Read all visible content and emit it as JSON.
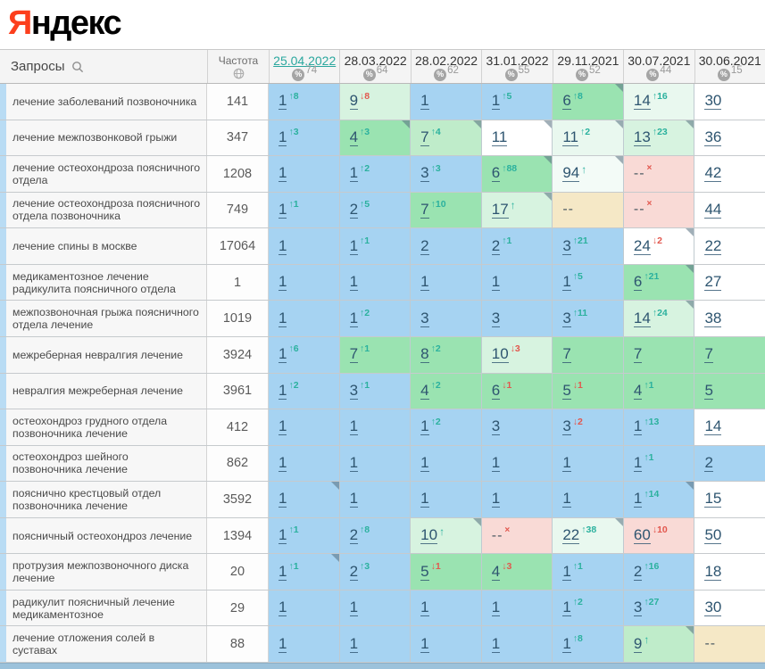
{
  "logo": {
    "red": "Я",
    "rest": "ндекс"
  },
  "colors": {
    "logo_red": "#fc3f1d",
    "date_link_teal": "#2aa79e",
    "improve_teal": "#2bb19e",
    "decline_red": "#e2574e",
    "cell_blue": "#a6d3f2",
    "cell_green": "#9ae3b1",
    "cell_pink": "#f9dad6",
    "cell_tan": "#f5e8c6",
    "position_text": "#2e5570"
  },
  "table": {
    "queries_header": "Запросы",
    "frequency_header": "Частота",
    "percent_icon": "%",
    "columns": [
      {
        "date": "25.04.2022",
        "count": "74",
        "active": true
      },
      {
        "date": "28.03.2022",
        "count": "64",
        "active": false
      },
      {
        "date": "28.02.2022",
        "count": "62",
        "active": false
      },
      {
        "date": "31.01.2022",
        "count": "55",
        "active": false
      },
      {
        "date": "29.11.2021",
        "count": "52",
        "active": false
      },
      {
        "date": "30.07.2021",
        "count": "44",
        "active": false
      },
      {
        "date": "30.06.2021",
        "count": "15",
        "active": false
      }
    ],
    "rows": [
      {
        "query": "лечение заболеваний позвоночника",
        "frequency": "141",
        "cells": [
          {
            "p": "1",
            "t": "up",
            "s": "8",
            "bg": "b"
          },
          {
            "p": "9",
            "t": "down",
            "s": "8",
            "bg": "g3"
          },
          {
            "p": "1",
            "bg": "b"
          },
          {
            "p": "1",
            "t": "up",
            "s": "5",
            "bg": "b"
          },
          {
            "p": "6",
            "t": "up",
            "s": "8",
            "bg": "g1",
            "c": true
          },
          {
            "p": "14",
            "t": "up",
            "s": "16",
            "bg": "g4"
          },
          {
            "p": "30",
            "bg": "w"
          }
        ]
      },
      {
        "query": "лечение межпозвонковой грыжи",
        "frequency": "347",
        "cells": [
          {
            "p": "1",
            "t": "up",
            "s": "3",
            "bg": "b"
          },
          {
            "p": "4",
            "t": "up",
            "s": "3",
            "bg": "g1",
            "c": true
          },
          {
            "p": "7",
            "t": "up",
            "s": "4",
            "bg": "g2",
            "c": true
          },
          {
            "p": "11",
            "bg": "w",
            "c": true
          },
          {
            "p": "11",
            "t": "up",
            "s": "2",
            "bg": "g4",
            "c": true
          },
          {
            "p": "13",
            "t": "up",
            "s": "23",
            "bg": "g3",
            "c": true
          },
          {
            "p": "36",
            "bg": "w"
          }
        ]
      },
      {
        "query": "лечение остеохондроза поясничного отдела",
        "frequency": "1208",
        "cells": [
          {
            "p": "1",
            "bg": "b"
          },
          {
            "p": "1",
            "t": "up",
            "s": "2",
            "bg": "b"
          },
          {
            "p": "3",
            "t": "up",
            "s": "3",
            "bg": "b"
          },
          {
            "p": "6",
            "t": "up",
            "s": "88",
            "bg": "g1",
            "c": true
          },
          {
            "p": "94",
            "t": "arrow",
            "bg": "g5",
            "c": true
          },
          {
            "p": "--",
            "t": "x",
            "bg": "p"
          },
          {
            "p": "42",
            "bg": "w"
          }
        ]
      },
      {
        "query": "лечение остеохондроза поясничного отдела позвоночника",
        "frequency": "749",
        "cells": [
          {
            "p": "1",
            "t": "up",
            "s": "1",
            "bg": "b"
          },
          {
            "p": "2",
            "t": "up",
            "s": "5",
            "bg": "b"
          },
          {
            "p": "7",
            "t": "up",
            "s": "10",
            "bg": "g1"
          },
          {
            "p": "17",
            "t": "arrow",
            "bg": "g3",
            "c": true
          },
          {
            "p": "--",
            "bg": "t"
          },
          {
            "p": "--",
            "t": "x",
            "bg": "p"
          },
          {
            "p": "44",
            "bg": "w"
          }
        ]
      },
      {
        "query": "лечение спины в москве",
        "frequency": "17064",
        "cells": [
          {
            "p": "1",
            "bg": "b"
          },
          {
            "p": "1",
            "t": "up",
            "s": "1",
            "bg": "b"
          },
          {
            "p": "2",
            "bg": "b"
          },
          {
            "p": "2",
            "t": "up",
            "s": "1",
            "bg": "b"
          },
          {
            "p": "3",
            "t": "up",
            "s": "21",
            "bg": "b"
          },
          {
            "p": "24",
            "t": "down",
            "s": "2",
            "bg": "w",
            "c": true
          },
          {
            "p": "22",
            "bg": "w"
          }
        ]
      },
      {
        "query": "медикаментозное лечение радикулита поясничного отдела",
        "frequency": "1",
        "cells": [
          {
            "p": "1",
            "bg": "b"
          },
          {
            "p": "1",
            "bg": "b"
          },
          {
            "p": "1",
            "bg": "b"
          },
          {
            "p": "1",
            "bg": "b"
          },
          {
            "p": "1",
            "t": "up",
            "s": "5",
            "bg": "b"
          },
          {
            "p": "6",
            "t": "up",
            "s": "21",
            "bg": "g1",
            "c": true
          },
          {
            "p": "27",
            "bg": "w"
          }
        ]
      },
      {
        "query": "межпозвоночная грыжа поясничного отдела лечение",
        "frequency": "1019",
        "cells": [
          {
            "p": "1",
            "bg": "b"
          },
          {
            "p": "1",
            "t": "up",
            "s": "2",
            "bg": "b"
          },
          {
            "p": "3",
            "bg": "b"
          },
          {
            "p": "3",
            "bg": "b"
          },
          {
            "p": "3",
            "t": "up",
            "s": "11",
            "bg": "b"
          },
          {
            "p": "14",
            "t": "up",
            "s": "24",
            "bg": "g3",
            "c": true
          },
          {
            "p": "38",
            "bg": "w"
          }
        ]
      },
      {
        "query": "межреберная невралгия лечение",
        "frequency": "3924",
        "cells": [
          {
            "p": "1",
            "t": "up",
            "s": "6",
            "bg": "b"
          },
          {
            "p": "7",
            "t": "up",
            "s": "1",
            "bg": "g1"
          },
          {
            "p": "8",
            "t": "up",
            "s": "2",
            "bg": "g1"
          },
          {
            "p": "10",
            "t": "down",
            "s": "3",
            "bg": "g3"
          },
          {
            "p": "7",
            "bg": "g1"
          },
          {
            "p": "7",
            "bg": "g1"
          },
          {
            "p": "7",
            "bg": "g1"
          }
        ]
      },
      {
        "query": "невралгия межреберная лечение",
        "frequency": "3961",
        "cells": [
          {
            "p": "1",
            "t": "up",
            "s": "2",
            "bg": "b"
          },
          {
            "p": "3",
            "t": "up",
            "s": "1",
            "bg": "b"
          },
          {
            "p": "4",
            "t": "up",
            "s": "2",
            "bg": "g1"
          },
          {
            "p": "6",
            "t": "down",
            "s": "1",
            "bg": "g1"
          },
          {
            "p": "5",
            "t": "down",
            "s": "1",
            "bg": "g1"
          },
          {
            "p": "4",
            "t": "up",
            "s": "1",
            "bg": "g1"
          },
          {
            "p": "5",
            "bg": "g1"
          }
        ]
      },
      {
        "query": "остеохондроз грудного отдела позвоночника лечение",
        "frequency": "412",
        "cells": [
          {
            "p": "1",
            "bg": "b"
          },
          {
            "p": "1",
            "bg": "b"
          },
          {
            "p": "1",
            "t": "up",
            "s": "2",
            "bg": "b"
          },
          {
            "p": "3",
            "bg": "b"
          },
          {
            "p": "3",
            "t": "down",
            "s": "2",
            "bg": "b"
          },
          {
            "p": "1",
            "t": "up",
            "s": "13",
            "bg": "b"
          },
          {
            "p": "14",
            "bg": "w"
          }
        ]
      },
      {
        "query": "остеохондроз шейного позвоночника лечение",
        "frequency": "862",
        "cells": [
          {
            "p": "1",
            "bg": "b"
          },
          {
            "p": "1",
            "bg": "b"
          },
          {
            "p": "1",
            "bg": "b"
          },
          {
            "p": "1",
            "bg": "b"
          },
          {
            "p": "1",
            "bg": "b"
          },
          {
            "p": "1",
            "t": "up",
            "s": "1",
            "bg": "b"
          },
          {
            "p": "2",
            "bg": "b"
          }
        ]
      },
      {
        "query": "пояснично крестцовый отдел позвоночника лечение",
        "frequency": "3592",
        "cells": [
          {
            "p": "1",
            "bg": "b",
            "c": true
          },
          {
            "p": "1",
            "bg": "b"
          },
          {
            "p": "1",
            "bg": "b"
          },
          {
            "p": "1",
            "bg": "b"
          },
          {
            "p": "1",
            "bg": "b"
          },
          {
            "p": "1",
            "t": "up",
            "s": "14",
            "bg": "b",
            "c": true
          },
          {
            "p": "15",
            "bg": "w"
          }
        ]
      },
      {
        "query": "поясничный остеохондроз лечение",
        "frequency": "1394",
        "cells": [
          {
            "p": "1",
            "t": "up",
            "s": "1",
            "bg": "b"
          },
          {
            "p": "2",
            "t": "up",
            "s": "8",
            "bg": "b"
          },
          {
            "p": "10",
            "t": "arrow",
            "bg": "g3",
            "c": true
          },
          {
            "p": "--",
            "t": "x",
            "bg": "p"
          },
          {
            "p": "22",
            "t": "up",
            "s": "38",
            "bg": "g4",
            "c": true
          },
          {
            "p": "60",
            "t": "down",
            "s": "10",
            "bg": "p"
          },
          {
            "p": "50",
            "bg": "w"
          }
        ]
      },
      {
        "query": "протрузия межпозвоночного диска лечение",
        "frequency": "20",
        "cells": [
          {
            "p": "1",
            "t": "up",
            "s": "1",
            "bg": "b",
            "c": true
          },
          {
            "p": "2",
            "t": "up",
            "s": "3",
            "bg": "b"
          },
          {
            "p": "5",
            "t": "down",
            "s": "1",
            "bg": "g1"
          },
          {
            "p": "4",
            "t": "down",
            "s": "3",
            "bg": "g1"
          },
          {
            "p": "1",
            "t": "up",
            "s": "1",
            "bg": "b"
          },
          {
            "p": "2",
            "t": "up",
            "s": "16",
            "bg": "b"
          },
          {
            "p": "18",
            "bg": "w"
          }
        ]
      },
      {
        "query": "радикулит поясничный лечение медикаментозное",
        "frequency": "29",
        "cells": [
          {
            "p": "1",
            "bg": "b"
          },
          {
            "p": "1",
            "bg": "b"
          },
          {
            "p": "1",
            "bg": "b"
          },
          {
            "p": "1",
            "bg": "b"
          },
          {
            "p": "1",
            "t": "up",
            "s": "2",
            "bg": "b"
          },
          {
            "p": "3",
            "t": "up",
            "s": "27",
            "bg": "b"
          },
          {
            "p": "30",
            "bg": "w"
          }
        ]
      },
      {
        "query": "лечение отложения солей в суставах",
        "frequency": "88",
        "cells": [
          {
            "p": "1",
            "bg": "b"
          },
          {
            "p": "1",
            "bg": "b"
          },
          {
            "p": "1",
            "bg": "b"
          },
          {
            "p": "1",
            "bg": "b"
          },
          {
            "p": "1",
            "t": "up",
            "s": "8",
            "bg": "b"
          },
          {
            "p": "9",
            "t": "arrow",
            "bg": "g2",
            "c": true
          },
          {
            "p": "--",
            "bg": "t"
          }
        ]
      }
    ]
  }
}
